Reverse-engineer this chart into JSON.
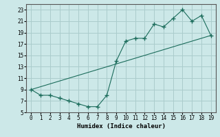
{
  "xlabel": "Humidex (Indice chaleur)",
  "background_color": "#cce8e8",
  "grid_color": "#aacccc",
  "line_color": "#1a6b5a",
  "xlim": [
    -0.5,
    19.5
  ],
  "ylim": [
    5,
    24
  ],
  "xticks": [
    0,
    1,
    2,
    3,
    4,
    5,
    6,
    7,
    8,
    9,
    10,
    11,
    12,
    13,
    14,
    15,
    16,
    17,
    18,
    19
  ],
  "yticks": [
    5,
    7,
    9,
    11,
    13,
    15,
    17,
    19,
    21,
    23
  ],
  "line1_x": [
    0,
    1,
    2,
    3,
    4,
    5,
    6,
    7,
    8,
    9,
    10,
    11,
    12,
    13,
    14,
    15,
    16,
    17,
    18,
    19
  ],
  "line1_y": [
    9,
    8,
    8,
    7.5,
    7,
    6.5,
    6,
    6,
    8,
    14,
    17.5,
    18,
    18,
    20.5,
    20,
    21.5,
    23,
    21,
    22,
    18.5
  ],
  "line2_x": [
    0,
    19
  ],
  "line2_y": [
    9,
    18.5
  ]
}
